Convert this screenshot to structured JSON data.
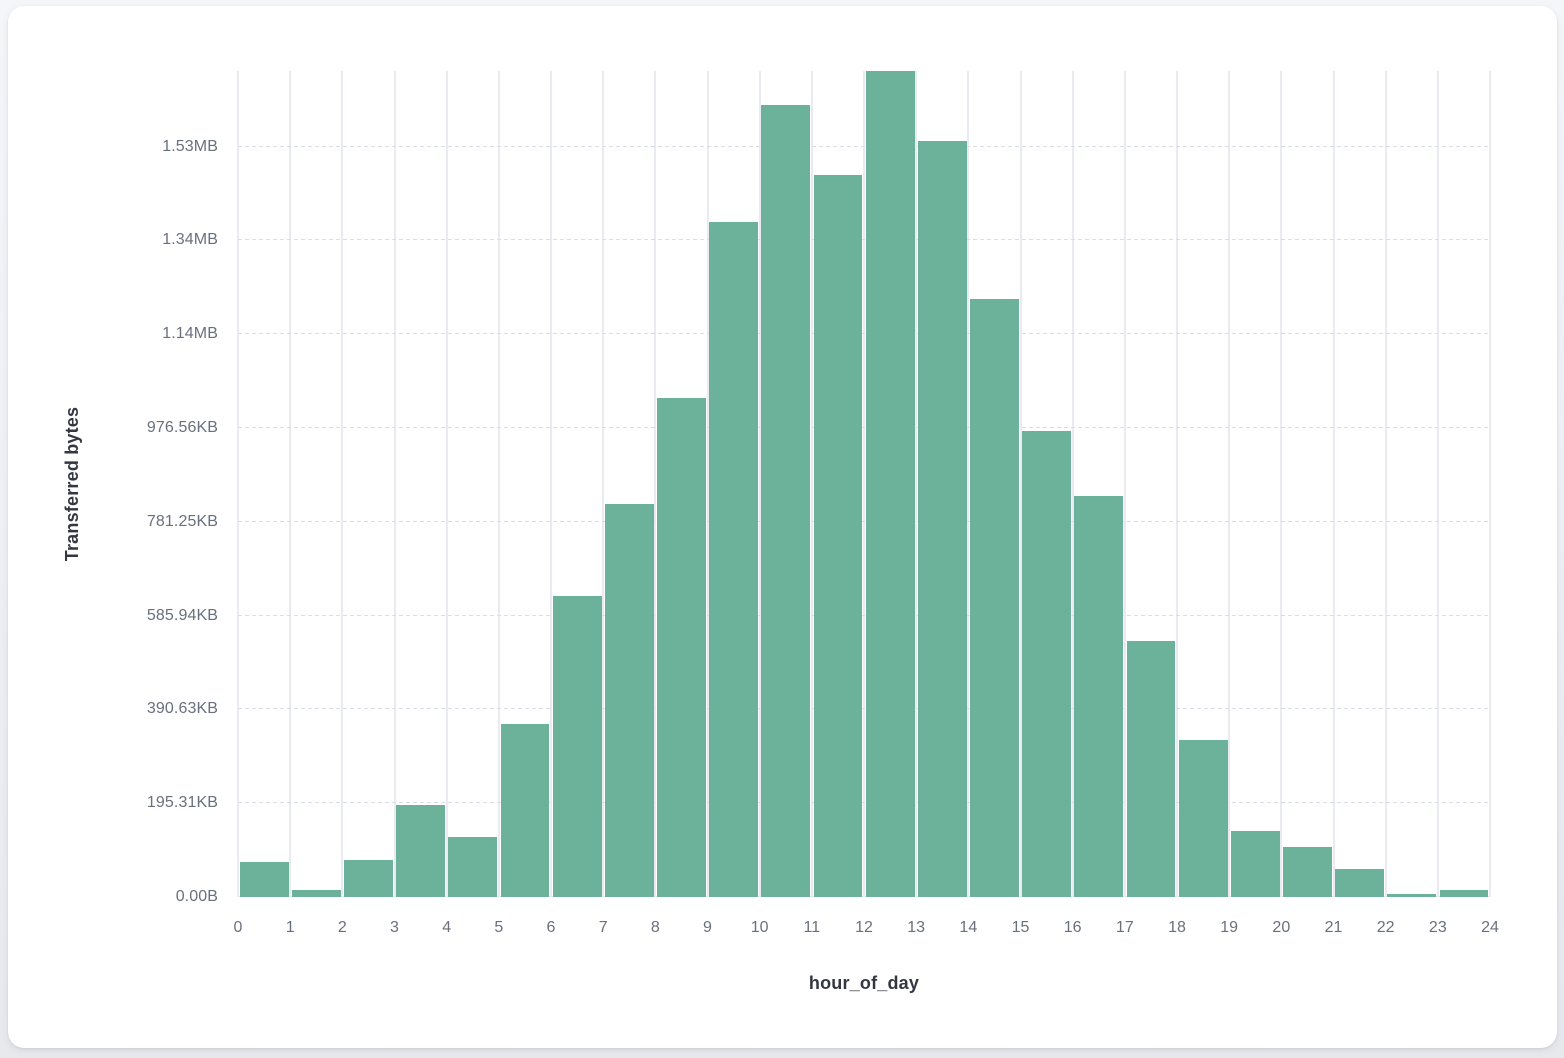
{
  "card": {
    "background_color": "#ffffff",
    "page_background_color": "#edeff3"
  },
  "chart_data": {
    "type": "bar",
    "title": "",
    "xlabel": "hour_of_day",
    "ylabel": "Transferred bytes",
    "bar_color": "#6cb199",
    "grid": true,
    "legend_position": "none",
    "x_tick_labels": [
      "0",
      "1",
      "2",
      "3",
      "4",
      "5",
      "6",
      "7",
      "8",
      "9",
      "10",
      "11",
      "12",
      "13",
      "14",
      "15",
      "16",
      "17",
      "18",
      "19",
      "20",
      "21",
      "22",
      "23",
      "24"
    ],
    "x_bin_edges": [
      0,
      1,
      2,
      3,
      4,
      5,
      6,
      7,
      8,
      9,
      10,
      11,
      12,
      13,
      14,
      15,
      16,
      17,
      18,
      19,
      20,
      21,
      22,
      23,
      24
    ],
    "hours": [
      0,
      1,
      2,
      3,
      4,
      5,
      6,
      7,
      8,
      9,
      10,
      11,
      12,
      13,
      14,
      15,
      16,
      17,
      18,
      19,
      20,
      21,
      22,
      23
    ],
    "values_bytes": [
      75000,
      16000,
      78000,
      197000,
      127000,
      368000,
      641000,
      838000,
      1064000,
      1440000,
      1688000,
      1540000,
      1761000,
      1611000,
      1276000,
      994000,
      855000,
      546000,
      334000,
      140000,
      106000,
      59000,
      5500,
      14000
    ],
    "y_axis_max_bytes": 1761000,
    "y_ticks": [
      {
        "bytes": 0,
        "label": "0.00B"
      },
      {
        "bytes": 200000,
        "label": "195.31KB"
      },
      {
        "bytes": 400000,
        "label": "390.63KB"
      },
      {
        "bytes": 600000,
        "label": "585.94KB"
      },
      {
        "bytes": 800000,
        "label": "781.25KB"
      },
      {
        "bytes": 1000000,
        "label": "976.56KB"
      },
      {
        "bytes": 1200000,
        "label": "1.14MB"
      },
      {
        "bytes": 1400000,
        "label": "1.34MB"
      },
      {
        "bytes": 1600000,
        "label": "1.53MB"
      }
    ],
    "text_colors": {
      "tick_label": "#69707d",
      "axis_title": "#343741",
      "v_gridline": "#e9ebf1",
      "h_gridline": "#d9dde5"
    }
  }
}
